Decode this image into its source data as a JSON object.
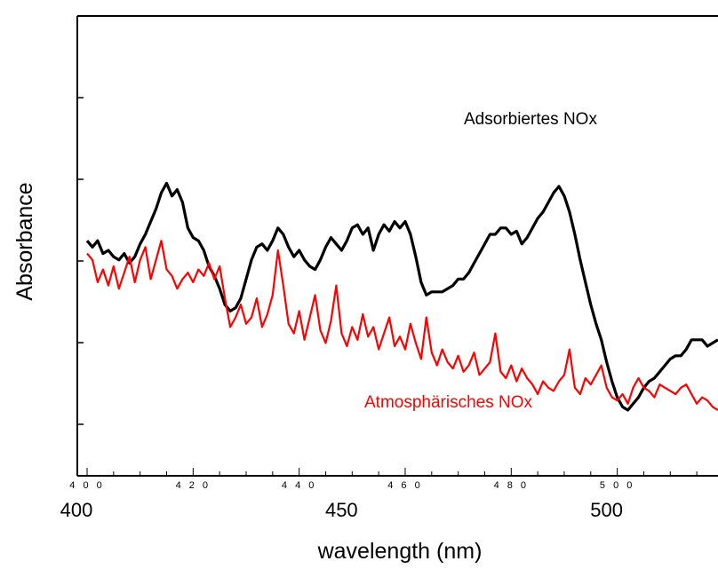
{
  "chart_data": {
    "type": "line",
    "title": "",
    "xlabel": "wavelength (nm)",
    "ylabel": "Absorbance",
    "xlim": [
      400,
      519
    ],
    "ylim": [
      0,
      1
    ],
    "y_tick_labels_shown": false,
    "grid": false,
    "legend": "none (inline annotations)",
    "x_ticks_major": [
      400,
      450,
      500
    ],
    "x_ticks_minor_labeled": [
      "4 0 0",
      "4 2 0",
      "4 4 0",
      "4 6 0",
      "4 8 0",
      "5 0 0"
    ],
    "x_ticks_minor_values": [
      400,
      420,
      440,
      460,
      480,
      500
    ],
    "annotations": [
      {
        "text": "Adsorbiertes NOx",
        "color": "#000000"
      },
      {
        "text": "Atmosphärisches NOx",
        "color": "#ff0000"
      }
    ],
    "series": [
      {
        "name": "Adsorbiertes NOx",
        "color": "#000000",
        "x": [
          400,
          401,
          402,
          403,
          404,
          405,
          406,
          407,
          408,
          409,
          410,
          411,
          412,
          413,
          414,
          415,
          416,
          417,
          418,
          419,
          420,
          421,
          422,
          423,
          424,
          425,
          426,
          427,
          428,
          429,
          430,
          431,
          432,
          433,
          434,
          435,
          436,
          437,
          438,
          439,
          440,
          441,
          442,
          443,
          444,
          445,
          446,
          447,
          448,
          449,
          450,
          451,
          452,
          453,
          454,
          455,
          456,
          457,
          458,
          459,
          460,
          461,
          462,
          463,
          464,
          465,
          466,
          467,
          468,
          469,
          470,
          471,
          472,
          473,
          474,
          475,
          476,
          477,
          478,
          479,
          480,
          481,
          482,
          483,
          484,
          485,
          486,
          487,
          488,
          489,
          490,
          491,
          492,
          493,
          494,
          495,
          496,
          497,
          498,
          499,
          500,
          501,
          502,
          503,
          504,
          505,
          506,
          507,
          508,
          509,
          510,
          511,
          512,
          513,
          514,
          515,
          516,
          517,
          518,
          519
        ],
        "values": [
          0.58,
          0.56,
          0.58,
          0.54,
          0.55,
          0.53,
          0.52,
          0.54,
          0.51,
          0.53,
          0.57,
          0.6,
          0.64,
          0.68,
          0.73,
          0.76,
          0.72,
          0.74,
          0.7,
          0.62,
          0.59,
          0.58,
          0.55,
          0.5,
          0.47,
          0.43,
          0.38,
          0.36,
          0.37,
          0.4,
          0.46,
          0.52,
          0.56,
          0.57,
          0.55,
          0.58,
          0.62,
          0.6,
          0.56,
          0.53,
          0.55,
          0.52,
          0.5,
          0.49,
          0.52,
          0.56,
          0.59,
          0.57,
          0.55,
          0.58,
          0.62,
          0.63,
          0.6,
          0.62,
          0.55,
          0.6,
          0.63,
          0.61,
          0.64,
          0.62,
          0.64,
          0.6,
          0.53,
          0.45,
          0.41,
          0.42,
          0.42,
          0.42,
          0.43,
          0.44,
          0.46,
          0.46,
          0.48,
          0.51,
          0.54,
          0.57,
          0.6,
          0.6,
          0.62,
          0.62,
          0.6,
          0.61,
          0.57,
          0.59,
          0.62,
          0.65,
          0.67,
          0.7,
          0.73,
          0.75,
          0.72,
          0.67,
          0.6,
          0.52,
          0.45,
          0.38,
          0.32,
          0.27,
          0.2,
          0.14,
          0.09,
          0.06,
          0.05,
          0.07,
          0.09,
          0.12,
          0.14,
          0.15,
          0.17,
          0.19,
          0.21,
          0.22,
          0.22,
          0.24,
          0.27,
          0.27,
          0.27,
          0.25,
          0.26,
          0.27
        ]
      },
      {
        "name": "Atmosphärisches NOx",
        "color": "#ff0000",
        "x": [
          400,
          401,
          402,
          403,
          404,
          405,
          406,
          407,
          408,
          409,
          410,
          411,
          412,
          413,
          414,
          415,
          416,
          417,
          418,
          419,
          420,
          421,
          422,
          423,
          424,
          425,
          426,
          427,
          428,
          429,
          430,
          431,
          432,
          433,
          434,
          435,
          436,
          437,
          438,
          439,
          440,
          441,
          442,
          443,
          444,
          445,
          446,
          447,
          448,
          449,
          450,
          451,
          452,
          453,
          454,
          455,
          456,
          457,
          458,
          459,
          460,
          461,
          462,
          463,
          464,
          465,
          466,
          467,
          468,
          469,
          470,
          471,
          472,
          473,
          474,
          475,
          476,
          477,
          478,
          479,
          480,
          481,
          482,
          483,
          484,
          485,
          486,
          487,
          488,
          489,
          490,
          491,
          492,
          493,
          494,
          495,
          496,
          497,
          498,
          499,
          500,
          501,
          502,
          503,
          504,
          505,
          506,
          507,
          508,
          509,
          510,
          511,
          512,
          513,
          514,
          515,
          516,
          517,
          518,
          519
        ],
        "values": [
          0.54,
          0.52,
          0.45,
          0.49,
          0.44,
          0.5,
          0.43,
          0.48,
          0.53,
          0.45,
          0.52,
          0.56,
          0.46,
          0.52,
          0.58,
          0.49,
          0.47,
          0.43,
          0.46,
          0.48,
          0.45,
          0.49,
          0.47,
          0.51,
          0.46,
          0.5,
          0.4,
          0.31,
          0.34,
          0.38,
          0.32,
          0.34,
          0.4,
          0.31,
          0.35,
          0.41,
          0.55,
          0.44,
          0.32,
          0.29,
          0.36,
          0.27,
          0.34,
          0.41,
          0.3,
          0.26,
          0.33,
          0.44,
          0.29,
          0.25,
          0.31,
          0.27,
          0.35,
          0.28,
          0.31,
          0.24,
          0.29,
          0.34,
          0.25,
          0.28,
          0.24,
          0.32,
          0.26,
          0.21,
          0.34,
          0.23,
          0.19,
          0.24,
          0.2,
          0.18,
          0.22,
          0.17,
          0.19,
          0.23,
          0.16,
          0.18,
          0.2,
          0.29,
          0.17,
          0.15,
          0.19,
          0.14,
          0.18,
          0.15,
          0.13,
          0.1,
          0.14,
          0.12,
          0.11,
          0.14,
          0.16,
          0.24,
          0.12,
          0.1,
          0.15,
          0.13,
          0.16,
          0.19,
          0.12,
          0.09,
          0.08,
          0.1,
          0.07,
          0.12,
          0.15,
          0.12,
          0.11,
          0.09,
          0.13,
          0.12,
          0.11,
          0.1,
          0.12,
          0.13,
          0.1,
          0.07,
          0.09,
          0.08,
          0.06,
          0.05
        ]
      }
    ]
  }
}
